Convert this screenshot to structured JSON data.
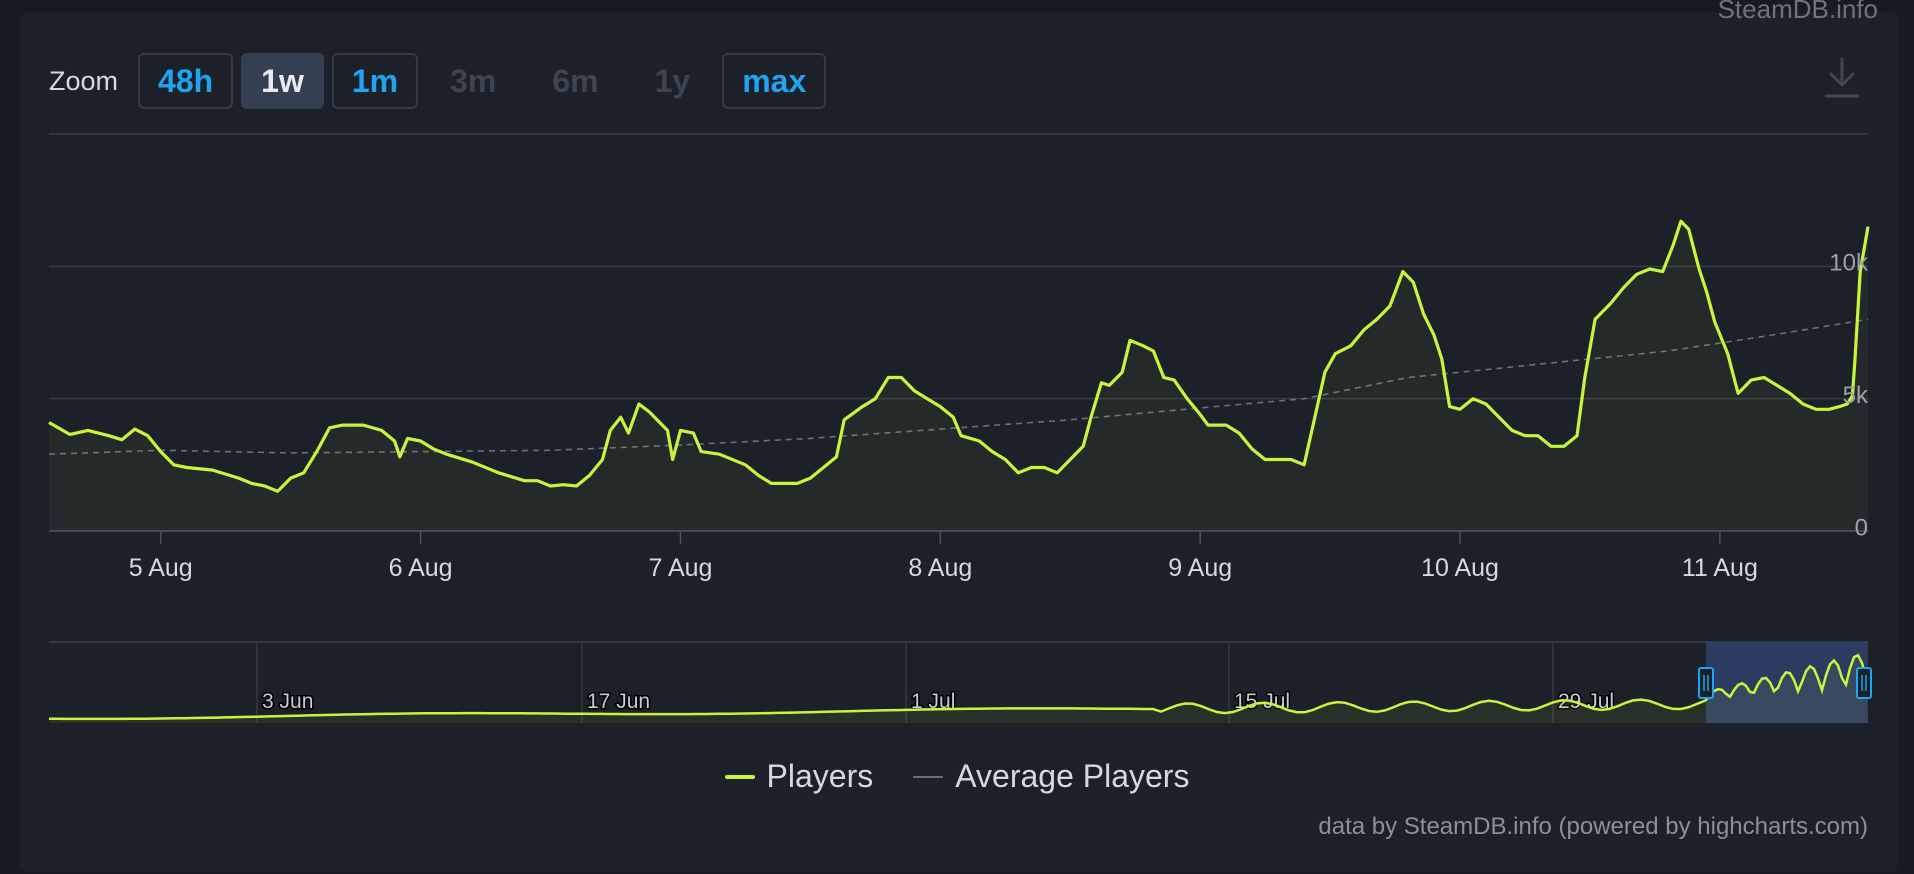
{
  "brand": "SteamDB.info",
  "zoom": {
    "label": "Zoom",
    "buttons": [
      {
        "label": "48h",
        "state": "enabled"
      },
      {
        "label": "1w",
        "state": "selected"
      },
      {
        "label": "1m",
        "state": "enabled"
      },
      {
        "label": "3m",
        "state": "disabled"
      },
      {
        "label": "6m",
        "state": "disabled"
      },
      {
        "label": "1y",
        "state": "disabled"
      },
      {
        "label": "max",
        "state": "enabled"
      }
    ]
  },
  "download_icon": "download-icon",
  "colors": {
    "players": "#c6f53c",
    "average": "#6a6f78",
    "accent": "#1ea4f0",
    "navigator_mask": "#334475"
  },
  "chart_data": {
    "type": "line",
    "title": "",
    "xlabel": "",
    "ylabel": "",
    "x_ticks": [
      "5 Aug",
      "6 Aug",
      "7 Aug",
      "8 Aug",
      "9 Aug",
      "10 Aug",
      "11 Aug"
    ],
    "y_ticks": [
      "0",
      "5k",
      "10k"
    ],
    "ylim": [
      0,
      15000
    ],
    "xlim": [
      0.57,
      7.57
    ],
    "grid": true,
    "legend_position": "bottom-center",
    "series": [
      {
        "name": "Players",
        "color": "#c6f53c",
        "style": "solid",
        "points": [
          [
            0.57,
            4100
          ],
          [
            0.65,
            3650
          ],
          [
            0.72,
            3800
          ],
          [
            0.8,
            3600
          ],
          [
            0.85,
            3450
          ],
          [
            0.9,
            3850
          ],
          [
            0.95,
            3600
          ],
          [
            1.0,
            3000
          ],
          [
            1.05,
            2500
          ],
          [
            1.1,
            2400
          ],
          [
            1.2,
            2300
          ],
          [
            1.3,
            2000
          ],
          [
            1.35,
            1800
          ],
          [
            1.4,
            1700
          ],
          [
            1.45,
            1500
          ],
          [
            1.5,
            2000
          ],
          [
            1.55,
            2200
          ],
          [
            1.6,
            3000
          ],
          [
            1.65,
            3900
          ],
          [
            1.7,
            4000
          ],
          [
            1.78,
            4000
          ],
          [
            1.85,
            3800
          ],
          [
            1.9,
            3400
          ],
          [
            1.92,
            2800
          ],
          [
            1.95,
            3500
          ],
          [
            2.0,
            3400
          ],
          [
            2.05,
            3100
          ],
          [
            2.1,
            2900
          ],
          [
            2.2,
            2600
          ],
          [
            2.3,
            2200
          ],
          [
            2.4,
            1900
          ],
          [
            2.45,
            1900
          ],
          [
            2.5,
            1700
          ],
          [
            2.55,
            1750
          ],
          [
            2.6,
            1700
          ],
          [
            2.65,
            2100
          ],
          [
            2.7,
            2700
          ],
          [
            2.73,
            3800
          ],
          [
            2.77,
            4300
          ],
          [
            2.8,
            3700
          ],
          [
            2.84,
            4800
          ],
          [
            2.88,
            4500
          ],
          [
            2.93,
            4000
          ],
          [
            2.95,
            3800
          ],
          [
            2.97,
            2700
          ],
          [
            3.0,
            3800
          ],
          [
            3.05,
            3700
          ],
          [
            3.08,
            3000
          ],
          [
            3.15,
            2900
          ],
          [
            3.25,
            2500
          ],
          [
            3.3,
            2100
          ],
          [
            3.35,
            1800
          ],
          [
            3.45,
            1800
          ],
          [
            3.5,
            2000
          ],
          [
            3.55,
            2400
          ],
          [
            3.6,
            2800
          ],
          [
            3.63,
            4200
          ],
          [
            3.7,
            4700
          ],
          [
            3.75,
            5000
          ],
          [
            3.8,
            5800
          ],
          [
            3.85,
            5800
          ],
          [
            3.9,
            5300
          ],
          [
            3.95,
            5000
          ],
          [
            4.0,
            4700
          ],
          [
            4.05,
            4300
          ],
          [
            4.08,
            3600
          ],
          [
            4.15,
            3400
          ],
          [
            4.2,
            3000
          ],
          [
            4.25,
            2700
          ],
          [
            4.3,
            2200
          ],
          [
            4.35,
            2400
          ],
          [
            4.4,
            2400
          ],
          [
            4.45,
            2200
          ],
          [
            4.5,
            2700
          ],
          [
            4.55,
            3200
          ],
          [
            4.58,
            4300
          ],
          [
            4.62,
            5600
          ],
          [
            4.65,
            5500
          ],
          [
            4.7,
            6000
          ],
          [
            4.73,
            7200
          ],
          [
            4.78,
            7000
          ],
          [
            4.82,
            6800
          ],
          [
            4.86,
            5800
          ],
          [
            4.9,
            5700
          ],
          [
            4.95,
            5000
          ],
          [
            5.0,
            4400
          ],
          [
            5.03,
            4000
          ],
          [
            5.1,
            4000
          ],
          [
            5.15,
            3700
          ],
          [
            5.2,
            3100
          ],
          [
            5.25,
            2700
          ],
          [
            5.3,
            2700
          ],
          [
            5.35,
            2700
          ],
          [
            5.4,
            2500
          ],
          [
            5.43,
            3800
          ],
          [
            5.48,
            6000
          ],
          [
            5.52,
            6700
          ],
          [
            5.58,
            7000
          ],
          [
            5.63,
            7600
          ],
          [
            5.68,
            8000
          ],
          [
            5.73,
            8500
          ],
          [
            5.78,
            9800
          ],
          [
            5.82,
            9400
          ],
          [
            5.86,
            8200
          ],
          [
            5.9,
            7400
          ],
          [
            5.93,
            6500
          ],
          [
            5.96,
            4700
          ],
          [
            6.0,
            4600
          ],
          [
            6.05,
            5000
          ],
          [
            6.1,
            4800
          ],
          [
            6.15,
            4300
          ],
          [
            6.2,
            3800
          ],
          [
            6.25,
            3600
          ],
          [
            6.3,
            3600
          ],
          [
            6.35,
            3200
          ],
          [
            6.4,
            3200
          ],
          [
            6.45,
            3600
          ],
          [
            6.48,
            5800
          ],
          [
            6.52,
            8000
          ],
          [
            6.58,
            8600
          ],
          [
            6.63,
            9200
          ],
          [
            6.68,
            9700
          ],
          [
            6.73,
            9900
          ],
          [
            6.78,
            9800
          ],
          [
            6.82,
            10800
          ],
          [
            6.85,
            11700
          ],
          [
            6.88,
            11400
          ],
          [
            6.92,
            9900
          ],
          [
            6.95,
            9000
          ],
          [
            6.98,
            7900
          ],
          [
            7.03,
            6700
          ],
          [
            7.07,
            5200
          ],
          [
            7.12,
            5700
          ],
          [
            7.17,
            5800
          ],
          [
            7.22,
            5500
          ],
          [
            7.27,
            5200
          ],
          [
            7.32,
            4800
          ],
          [
            7.37,
            4600
          ],
          [
            7.42,
            4600
          ],
          [
            7.46,
            4700
          ],
          [
            7.49,
            4800
          ],
          [
            7.51,
            5100
          ],
          [
            7.52,
            6500
          ],
          [
            7.54,
            9800
          ],
          [
            7.57,
            11500
          ]
        ]
      },
      {
        "name": "Average Players",
        "color": "#6a6f78",
        "style": "dashed",
        "points": [
          [
            0.57,
            2900
          ],
          [
            1.0,
            3050
          ],
          [
            1.5,
            2950
          ],
          [
            2.0,
            3000
          ],
          [
            2.5,
            3050
          ],
          [
            3.0,
            3250
          ],
          [
            3.5,
            3500
          ],
          [
            4.0,
            3850
          ],
          [
            4.5,
            4200
          ],
          [
            5.0,
            4650
          ],
          [
            5.4,
            5000
          ],
          [
            5.8,
            5800
          ],
          [
            6.3,
            6300
          ],
          [
            6.8,
            6800
          ],
          [
            7.2,
            7400
          ],
          [
            7.57,
            8000
          ]
        ]
      }
    ]
  },
  "navigator": {
    "labels": [
      "3 Jun",
      "17 Jun",
      "1 Jul",
      "15 Jul",
      "29 Jul"
    ],
    "handle_icon": "grip-handle-icon"
  },
  "legend": {
    "players_label": "Players",
    "average_label": "Average Players"
  },
  "credits": "data by SteamDB.info (powered by highcharts.com)"
}
